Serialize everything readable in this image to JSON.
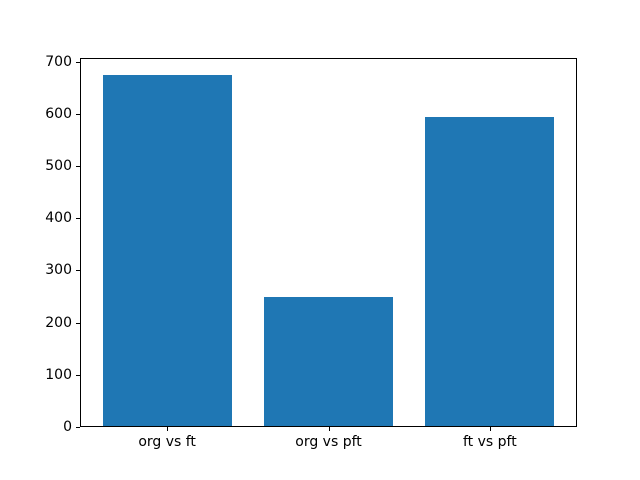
{
  "chart_data": {
    "type": "bar",
    "categories": [
      "org vs ft",
      "org vs pft",
      "ft vs pft"
    ],
    "values": [
      672,
      247,
      592
    ],
    "yticks": [
      0,
      100,
      200,
      300,
      400,
      500,
      600,
      700
    ],
    "ylim": [
      0,
      707
    ],
    "title": "",
    "xlabel": "",
    "ylabel": "",
    "grid": false,
    "legend": false,
    "bar_color": "#1f77b4",
    "axis_color": "#000000",
    "background_color": "#ffffff",
    "bar_width_fraction": 0.8
  }
}
